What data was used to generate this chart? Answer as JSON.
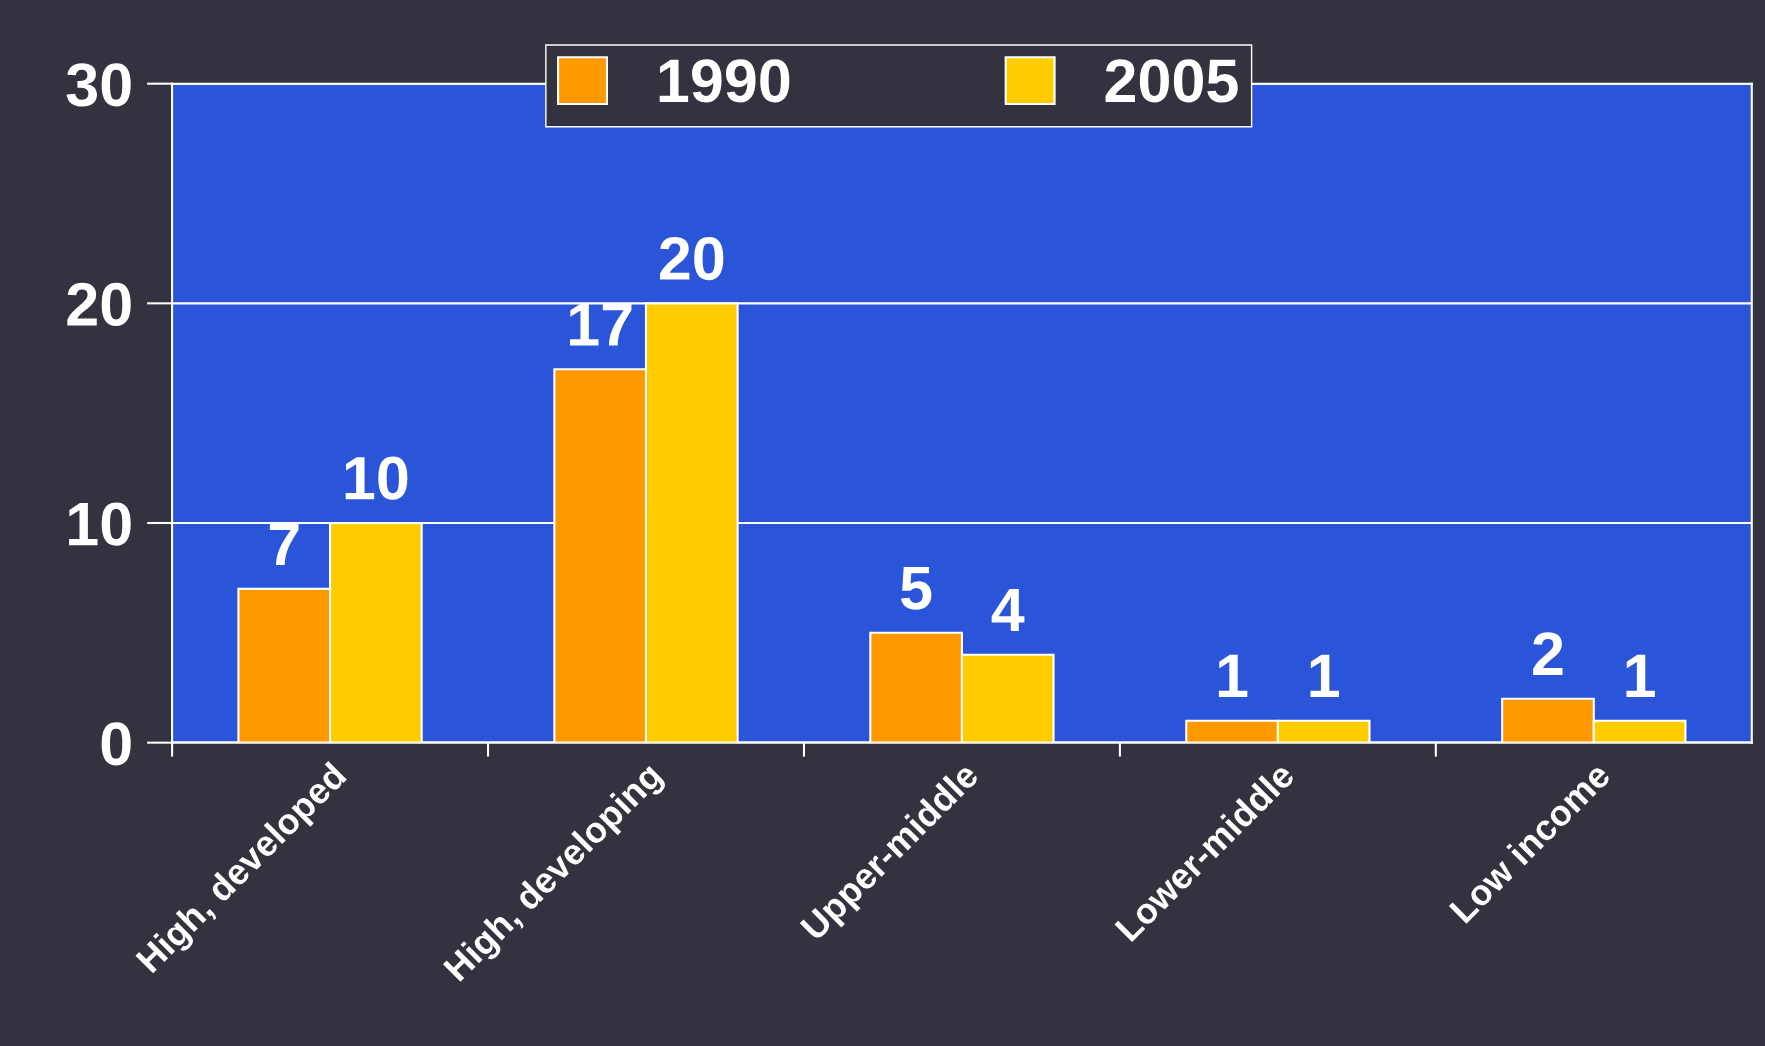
{
  "chart_data": {
    "type": "bar",
    "categories": [
      "High, developed",
      "High, developing",
      "Upper-middle",
      "Lower-middle",
      "Low income"
    ],
    "series": [
      {
        "name": "1990",
        "color": "#ff9900",
        "values": [
          7,
          17,
          5,
          1,
          2
        ]
      },
      {
        "name": "2005",
        "color": "#ffcc00",
        "values": [
          10,
          20,
          4,
          1,
          1
        ]
      }
    ],
    "ylim": [
      0,
      30
    ],
    "yticks": [
      0,
      10,
      20,
      30
    ],
    "grid": "y",
    "legend": "top",
    "data_labels": true
  }
}
